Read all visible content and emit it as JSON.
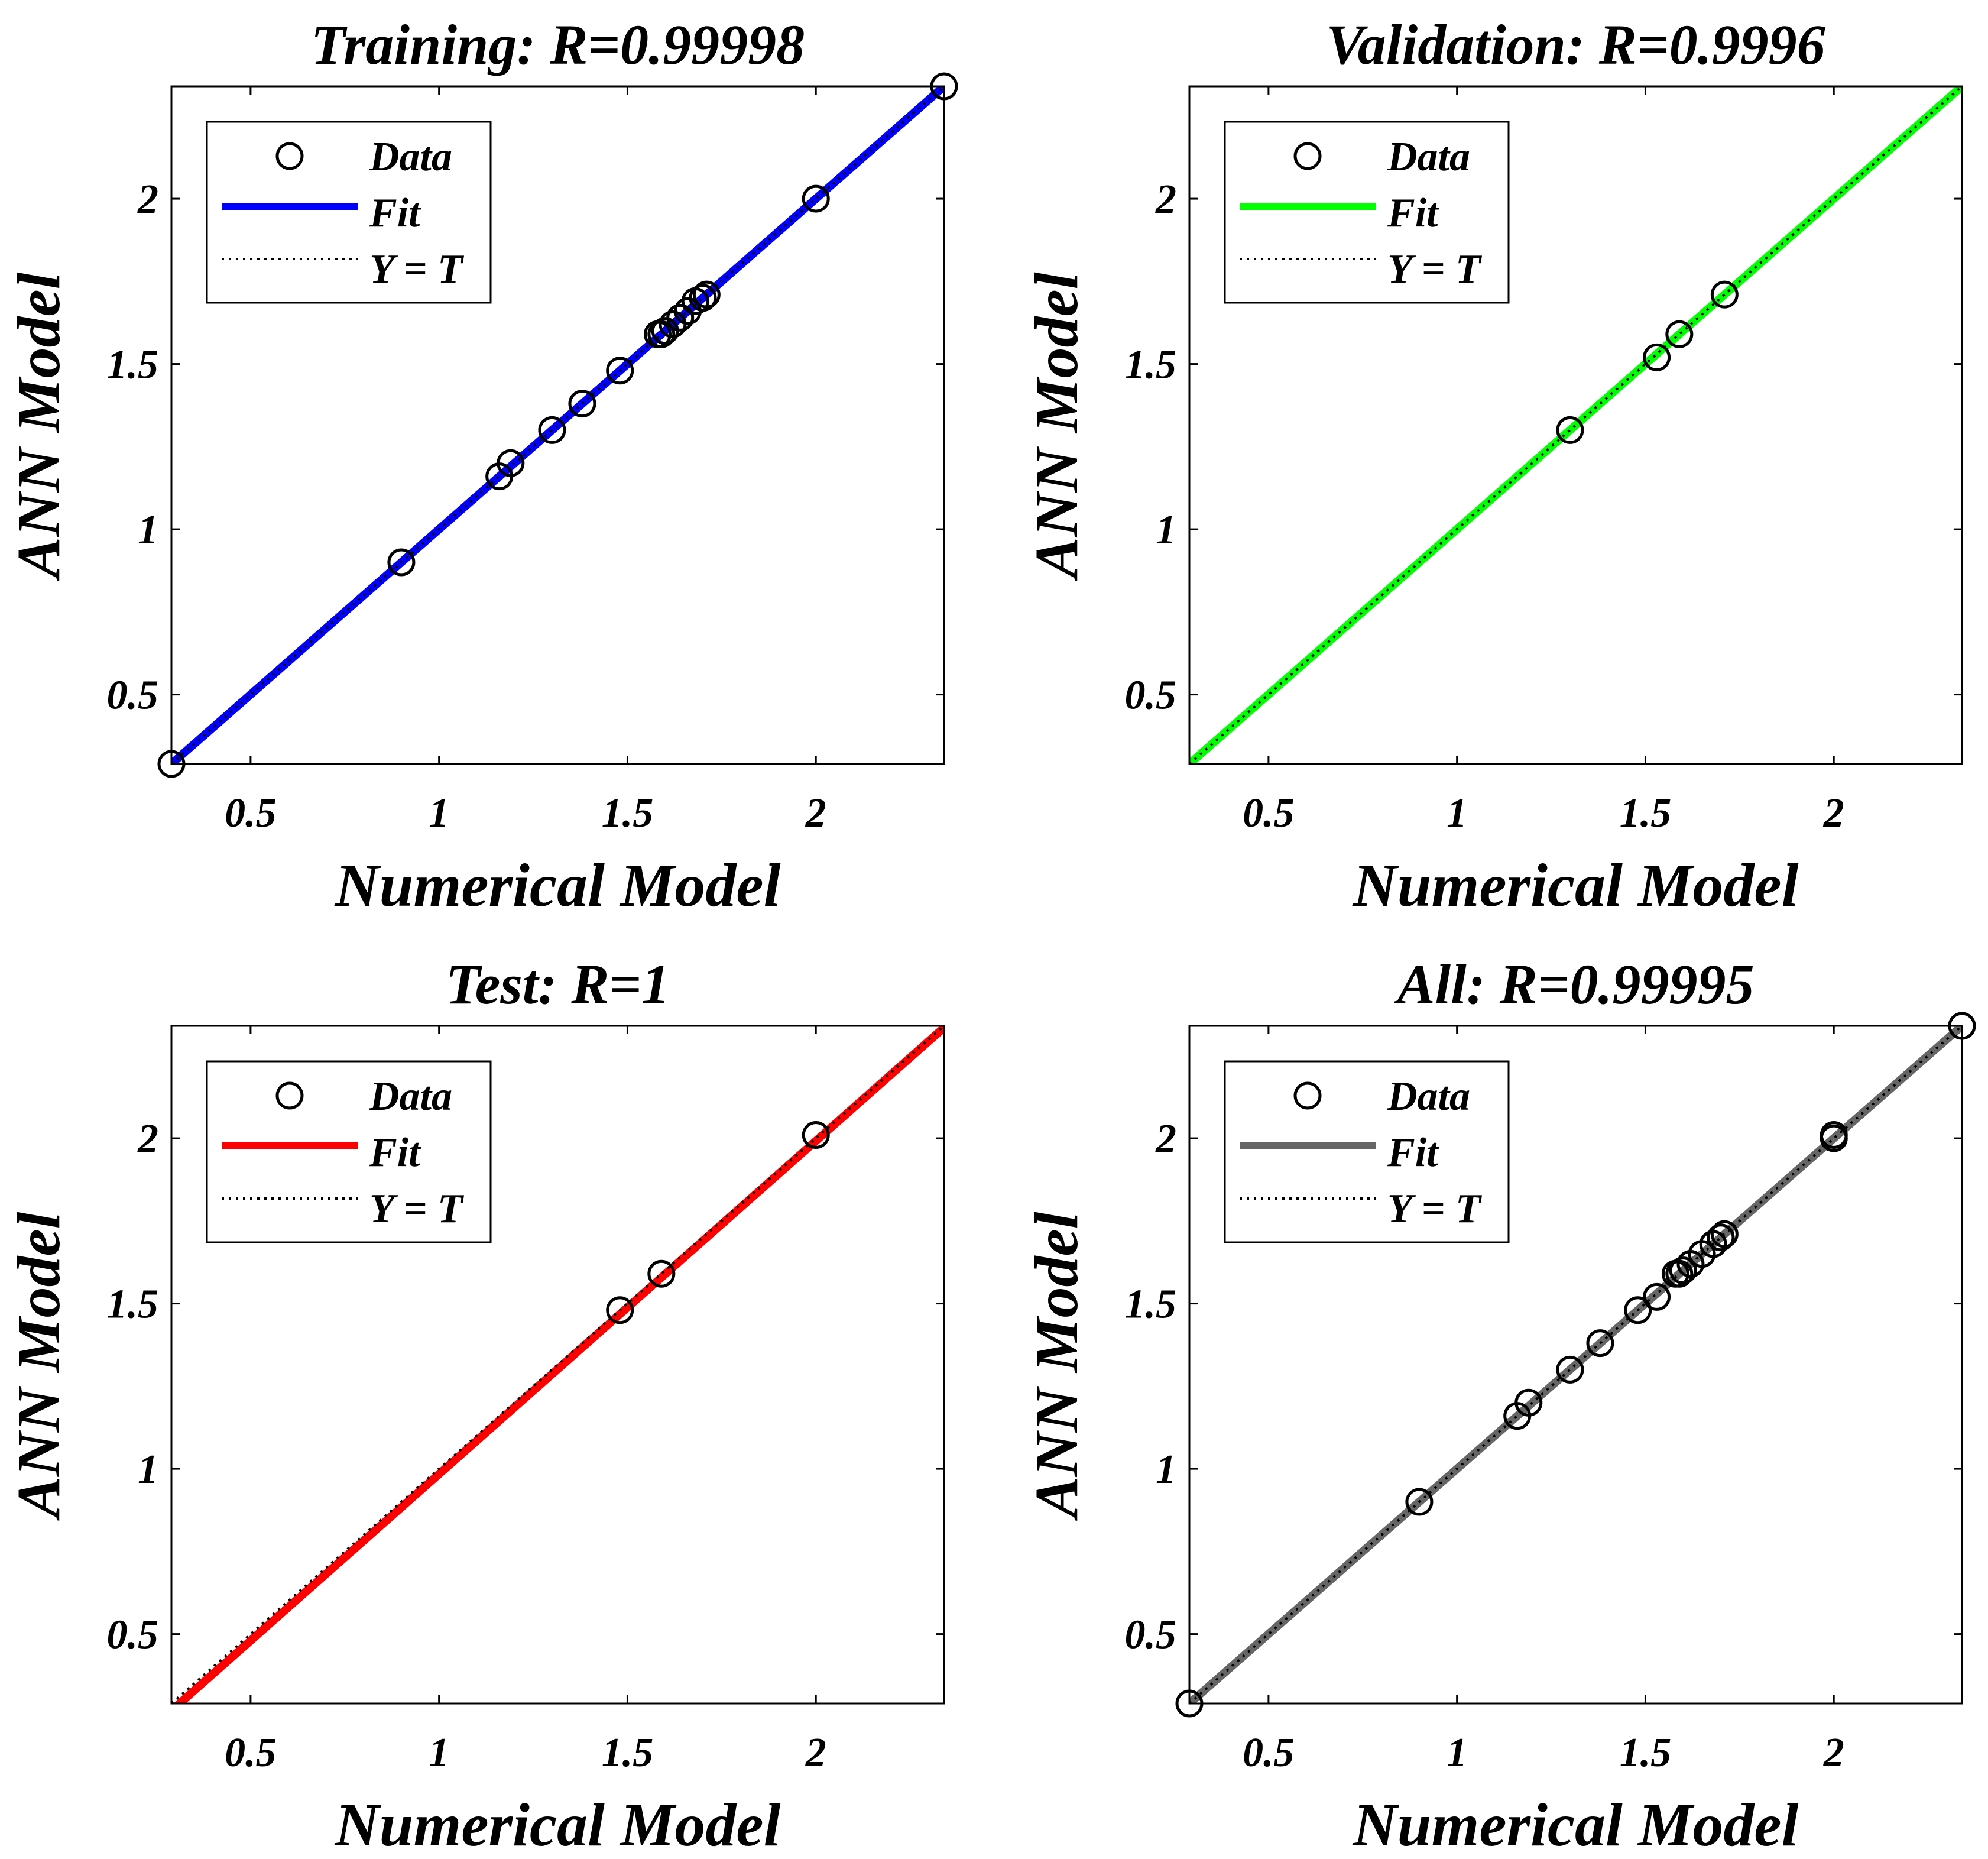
{
  "chart_data": [
    {
      "type": "scatter",
      "title": "Training: R=0.99998",
      "xlabel": "Numerical Model",
      "ylabel": "ANN Model",
      "xlim": [
        0.29,
        2.34
      ],
      "ylim": [
        0.29,
        2.34
      ],
      "xticks": [
        {
          "v": 0.5,
          "label": "0.5"
        },
        {
          "v": 1,
          "label": "1"
        },
        {
          "v": 1.5,
          "label": "1.5"
        },
        {
          "v": 2,
          "label": "2"
        }
      ],
      "yticks": [
        {
          "v": 0.5,
          "label": "0.5"
        },
        {
          "v": 1,
          "label": "1"
        },
        {
          "v": 1.5,
          "label": "1.5"
        },
        {
          "v": 2,
          "label": "2"
        }
      ],
      "fit_color": "#0000ff",
      "fit": {
        "slope": 1.0,
        "intercept": 0.0
      },
      "legend": [
        "Data",
        "Fit",
        "Y = T"
      ],
      "points": [
        [
          0.29,
          0.29
        ],
        [
          0.9,
          0.9
        ],
        [
          1.16,
          1.16
        ],
        [
          1.19,
          1.2
        ],
        [
          1.3,
          1.3
        ],
        [
          1.38,
          1.38
        ],
        [
          1.48,
          1.48
        ],
        [
          1.58,
          1.59
        ],
        [
          1.59,
          1.59
        ],
        [
          1.6,
          1.6
        ],
        [
          1.62,
          1.62
        ],
        [
          1.64,
          1.64
        ],
        [
          1.66,
          1.66
        ],
        [
          1.68,
          1.69
        ],
        [
          1.7,
          1.7
        ],
        [
          1.71,
          1.71
        ],
        [
          2.0,
          2.0
        ],
        [
          2.34,
          2.34
        ]
      ]
    },
    {
      "type": "scatter",
      "title": "Validation: R=0.9996",
      "xlabel": "Numerical Model",
      "ylabel": "ANN Model",
      "xlim": [
        0.29,
        2.34
      ],
      "ylim": [
        0.29,
        2.34
      ],
      "xticks": [
        {
          "v": 0.5,
          "label": "0.5"
        },
        {
          "v": 1,
          "label": "1"
        },
        {
          "v": 1.5,
          "label": "1.5"
        },
        {
          "v": 2,
          "label": "2"
        }
      ],
      "yticks": [
        {
          "v": 0.5,
          "label": "0.5"
        },
        {
          "v": 1,
          "label": "1"
        },
        {
          "v": 1.5,
          "label": "1.5"
        },
        {
          "v": 2,
          "label": "2"
        }
      ],
      "fit_color": "#00ff00",
      "fit": {
        "slope": 1.0,
        "intercept": 0.0
      },
      "legend": [
        "Data",
        "Fit",
        "Y = T"
      ],
      "points": [
        [
          1.3,
          1.3
        ],
        [
          1.53,
          1.52
        ],
        [
          1.59,
          1.59
        ],
        [
          1.71,
          1.71
        ]
      ]
    },
    {
      "type": "scatter",
      "title": "Test: R=1",
      "xlabel": "Numerical Model",
      "ylabel": "ANN Model",
      "xlim": [
        0.29,
        2.34
      ],
      "ylim": [
        0.29,
        2.34
      ],
      "xticks": [
        {
          "v": 0.5,
          "label": "0.5"
        },
        {
          "v": 1,
          "label": "1"
        },
        {
          "v": 1.5,
          "label": "1.5"
        },
        {
          "v": 2,
          "label": "2"
        }
      ],
      "yticks": [
        {
          "v": 0.5,
          "label": "0.5"
        },
        {
          "v": 1,
          "label": "1"
        },
        {
          "v": 1.5,
          "label": "1.5"
        },
        {
          "v": 2,
          "label": "2"
        }
      ],
      "fit_color": "#ff0000",
      "fit": {
        "slope": 1.008,
        "intercept": -0.024
      },
      "legend": [
        "Data",
        "Fit",
        "Y = T"
      ],
      "points": [
        [
          1.48,
          1.48
        ],
        [
          1.59,
          1.59
        ],
        [
          2.0,
          2.01
        ]
      ]
    },
    {
      "type": "scatter",
      "title": "All: R=0.99995",
      "xlabel": "Numerical Model",
      "ylabel": "ANN Model",
      "xlim": [
        0.29,
        2.34
      ],
      "ylim": [
        0.29,
        2.34
      ],
      "xticks": [
        {
          "v": 0.5,
          "label": "0.5"
        },
        {
          "v": 1,
          "label": "1"
        },
        {
          "v": 1.5,
          "label": "1.5"
        },
        {
          "v": 2,
          "label": "2"
        }
      ],
      "yticks": [
        {
          "v": 0.5,
          "label": "0.5"
        },
        {
          "v": 1,
          "label": "1"
        },
        {
          "v": 1.5,
          "label": "1.5"
        },
        {
          "v": 2,
          "label": "2"
        }
      ],
      "fit_color": "#666666",
      "fit": {
        "slope": 1.0,
        "intercept": 0.0
      },
      "legend": [
        "Data",
        "Fit",
        "Y = T"
      ],
      "points": [
        [
          0.29,
          0.29
        ],
        [
          0.9,
          0.9
        ],
        [
          1.16,
          1.16
        ],
        [
          1.19,
          1.2
        ],
        [
          1.3,
          1.3
        ],
        [
          1.38,
          1.38
        ],
        [
          1.48,
          1.48
        ],
        [
          1.53,
          1.52
        ],
        [
          1.58,
          1.59
        ],
        [
          1.59,
          1.59
        ],
        [
          1.6,
          1.6
        ],
        [
          1.62,
          1.62
        ],
        [
          1.65,
          1.65
        ],
        [
          1.68,
          1.68
        ],
        [
          1.7,
          1.7
        ],
        [
          1.71,
          1.71
        ],
        [
          2.0,
          2.0
        ],
        [
          2.0,
          2.01
        ],
        [
          2.34,
          2.34
        ]
      ]
    }
  ]
}
